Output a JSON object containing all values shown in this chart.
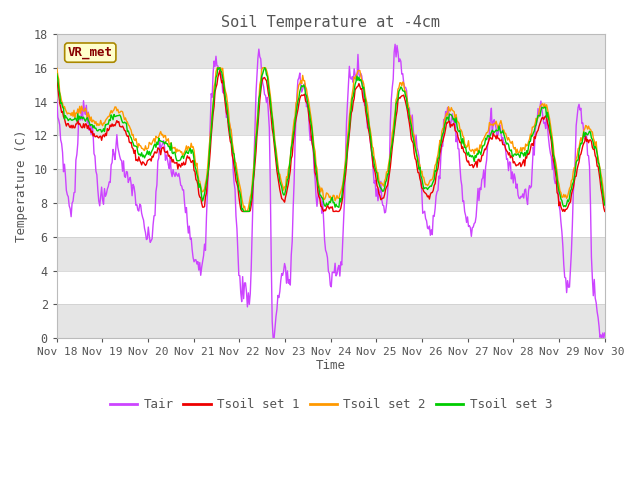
{
  "title": "Soil Temperature at -4cm",
  "ylabel": "Temperature (C)",
  "xlabel": "Time",
  "site_label": "VR_met",
  "ylim": [
    0,
    18
  ],
  "yticks": [
    0,
    2,
    4,
    6,
    8,
    10,
    12,
    14,
    16,
    18
  ],
  "xtick_labels": [
    "Nov 18",
    "Nov 19",
    "Nov 20",
    "Nov 21",
    "Nov 22",
    "Nov 23",
    "Nov 24",
    "Nov 25",
    "Nov 26",
    "Nov 27",
    "Nov 28",
    "Nov 29",
    "Nov 30"
  ],
  "colors": {
    "Tair": "#cc44ff",
    "Tsoil1": "#ee0000",
    "Tsoil2": "#ff9900",
    "Tsoil3": "#00cc00"
  },
  "legend_labels": [
    "Tair",
    "Tsoil set 1",
    "Tsoil set 2",
    "Tsoil set 3"
  ],
  "background_color": "#ffffff",
  "grid_band_color": "#e5e5e5",
  "title_color": "#555555",
  "label_color": "#555555",
  "font": "monospace"
}
